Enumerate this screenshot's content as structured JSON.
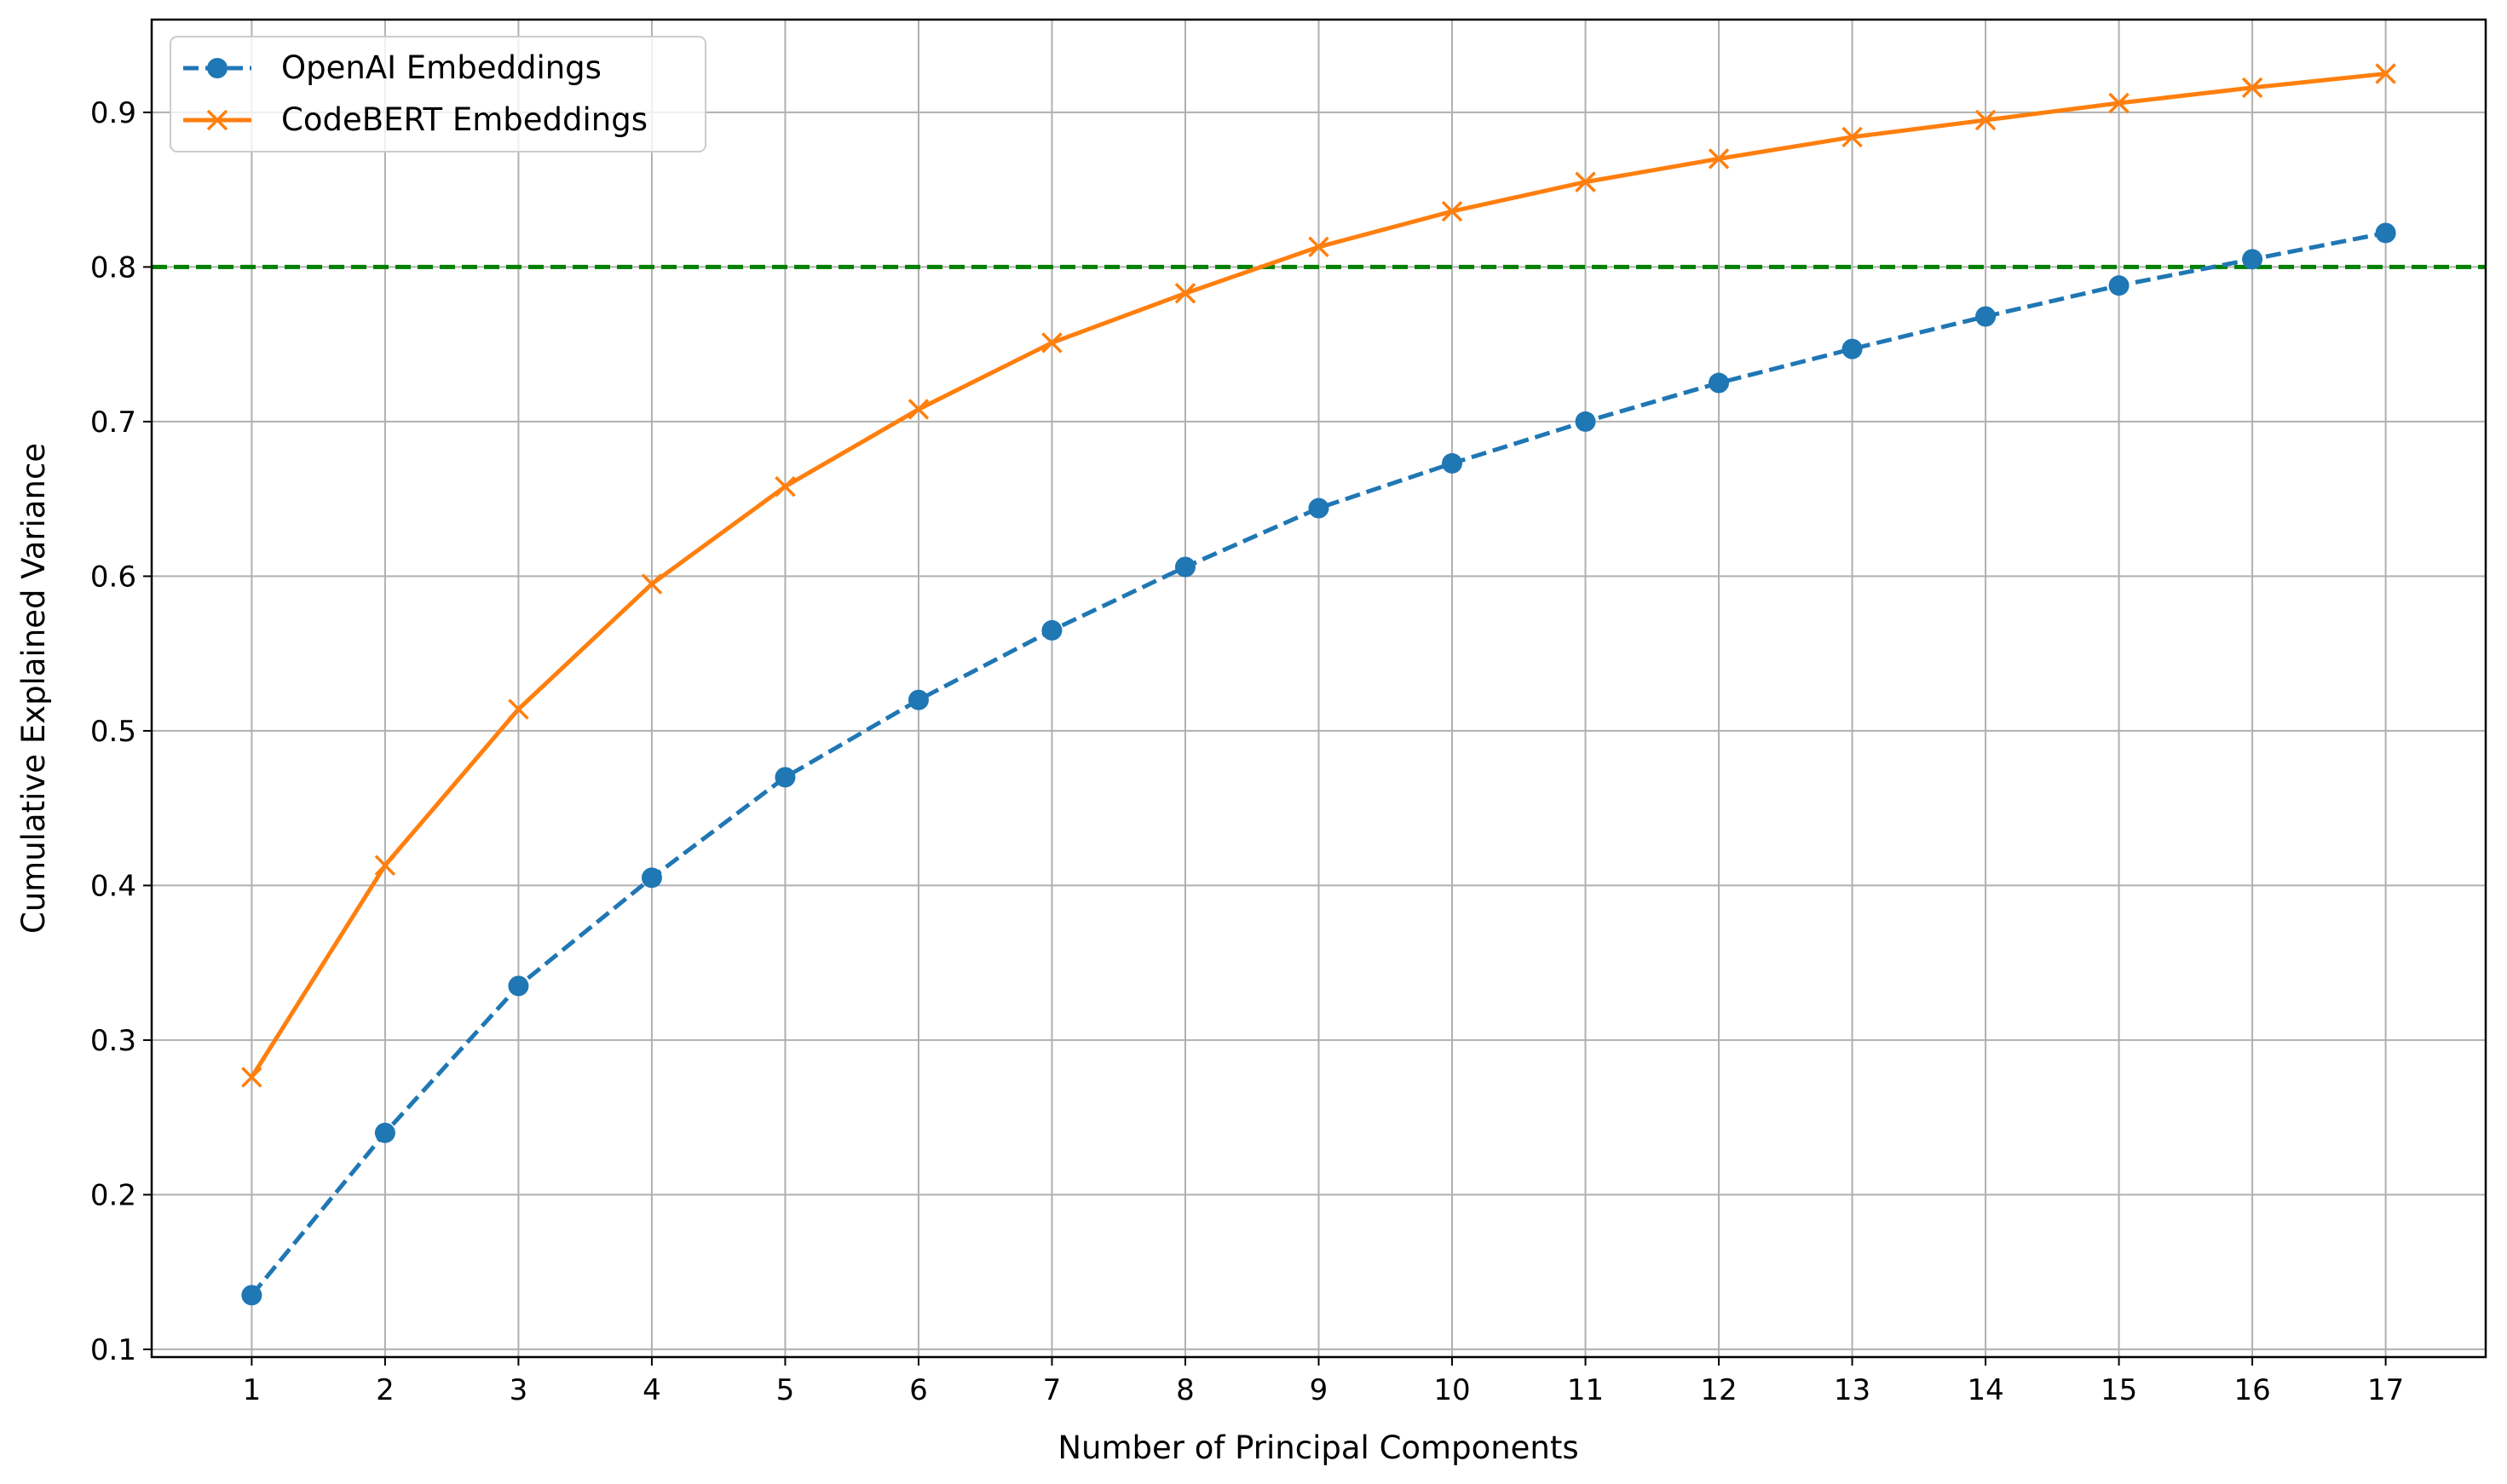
{
  "chart_data": {
    "type": "line",
    "xlabel": "Number of Principal Components",
    "ylabel": "Cumulative Explained Variance",
    "xlim": [
      0.25,
      17.75
    ],
    "ylim": [
      0.095,
      0.96
    ],
    "x": [
      1,
      2,
      3,
      4,
      5,
      6,
      7,
      8,
      9,
      10,
      11,
      12,
      13,
      14,
      15,
      16,
      17
    ],
    "x_ticks": [
      "1",
      "2",
      "3",
      "4",
      "5",
      "6",
      "7",
      "8",
      "9",
      "10",
      "11",
      "12",
      "13",
      "14",
      "15",
      "16",
      "17"
    ],
    "y_ticks": [
      0.1,
      0.2,
      0.3,
      0.4,
      0.5,
      0.6,
      0.7,
      0.8,
      0.9
    ],
    "grid": true,
    "legend_position": "top-left",
    "series": [
      {
        "name": "OpenAI Embeddings",
        "color": "#1f77b4",
        "line_style": "dashed",
        "marker": "circle",
        "values": [
          0.135,
          0.24,
          0.335,
          0.405,
          0.47,
          0.52,
          0.565,
          0.606,
          0.644,
          0.673,
          0.7,
          0.725,
          0.747,
          0.768,
          0.788,
          0.805,
          0.822
        ]
      },
      {
        "name": "CodeBERT Embeddings",
        "color": "#ff7f0e",
        "line_style": "solid",
        "marker": "x",
        "values": [
          0.276,
          0.413,
          0.514,
          0.595,
          0.658,
          0.708,
          0.751,
          0.783,
          0.813,
          0.836,
          0.855,
          0.87,
          0.884,
          0.895,
          0.906,
          0.916,
          0.925
        ]
      }
    ],
    "reference_line": {
      "y": 0.8,
      "color": "#008000",
      "line_style": "dashed"
    }
  }
}
